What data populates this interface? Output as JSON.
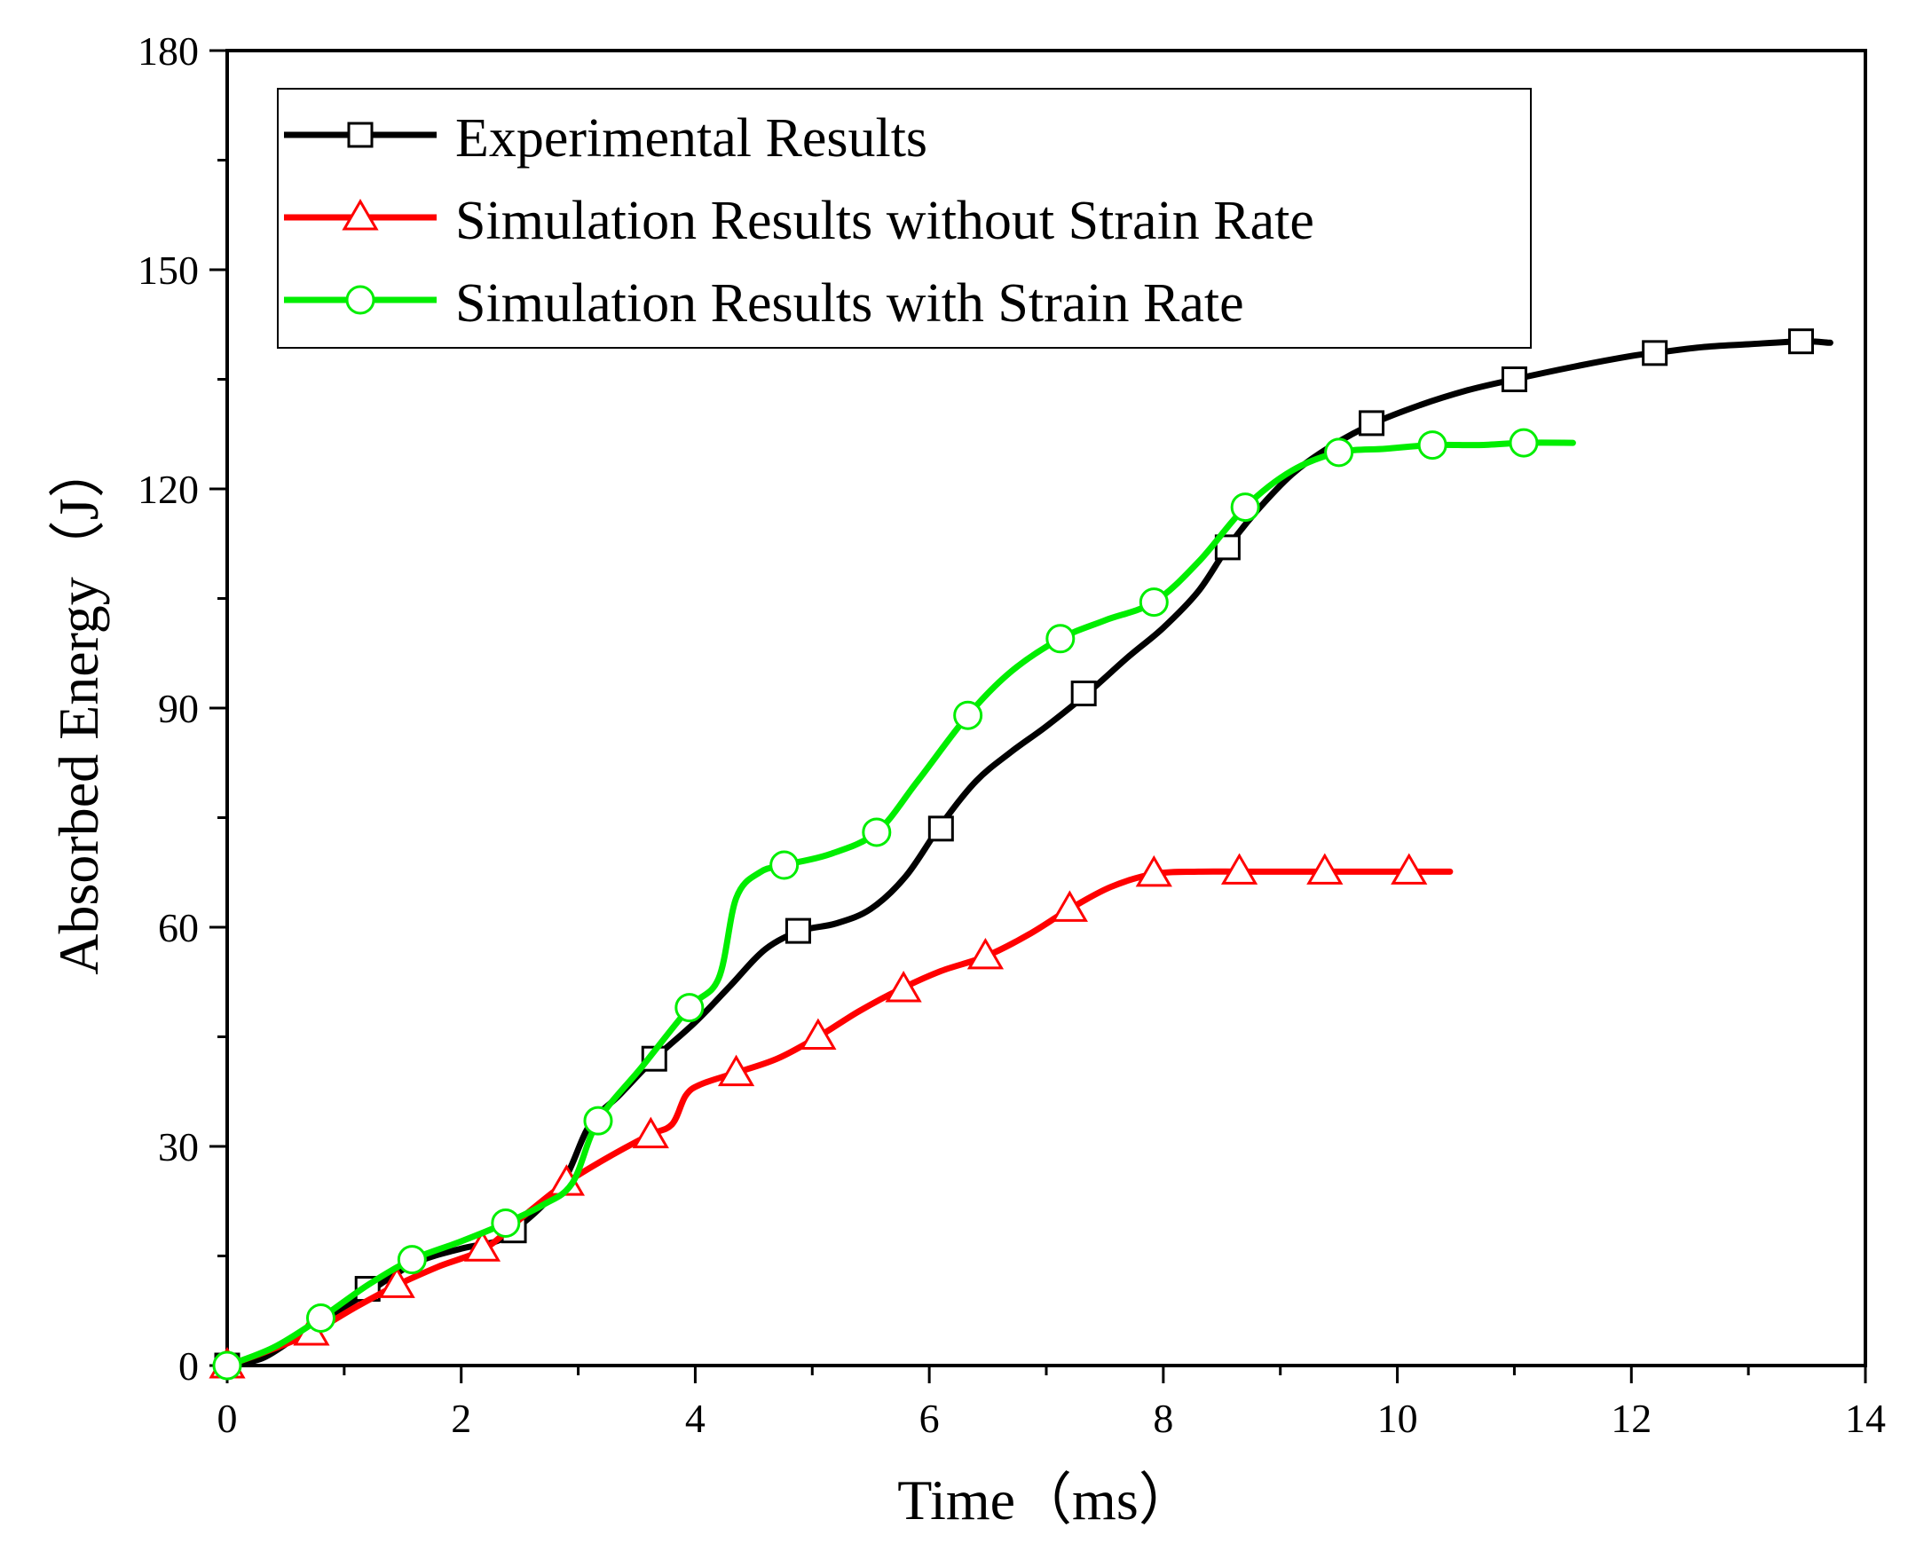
{
  "chart_data": {
    "type": "line",
    "title": "",
    "xlabel": "Time（ms）",
    "ylabel": "Absorbed Energy（J）",
    "xlim": [
      0,
      14
    ],
    "ylim": [
      0,
      180
    ],
    "xticks": [
      0,
      2,
      4,
      6,
      8,
      10,
      12,
      14
    ],
    "yticks": [
      0,
      30,
      60,
      90,
      120,
      150,
      180
    ],
    "xticks_minor": [
      1,
      3,
      5,
      7,
      9,
      11,
      13
    ],
    "yticks_minor": [
      15,
      45,
      75,
      105,
      135,
      165
    ],
    "grid": false,
    "legend_position": "top-left",
    "series": [
      {
        "name": "Experimental Results",
        "color": "#000000",
        "marker": "square",
        "x": [
          0,
          0.3,
          0.6,
          0.9,
          1.2,
          1.6,
          2.0,
          2.3,
          2.45,
          2.7,
          2.9,
          3.1,
          3.35,
          3.65,
          4.0,
          4.3,
          4.6,
          4.9,
          5.2,
          5.5,
          5.8,
          6.1,
          6.4,
          6.7,
          7.0,
          7.35,
          7.7,
          8.0,
          8.3,
          8.55,
          8.8,
          9.1,
          9.4,
          9.8,
          10.2,
          10.6,
          11.0,
          11.5,
          12.0,
          12.2,
          12.6,
          13.0,
          13.45,
          13.7
        ],
        "y": [
          0,
          1,
          4,
          7,
          10,
          14,
          16,
          17,
          18.5,
          22,
          26,
          33,
          37,
          42,
          47,
          52,
          57,
          59.5,
          60.5,
          62.5,
          67,
          74,
          80,
          84,
          87.5,
          92,
          97,
          101,
          106,
          112,
          117,
          122,
          125.5,
          129,
          131.5,
          133.5,
          135,
          136.7,
          138.2,
          138.6,
          139.4,
          139.8,
          140.2,
          140
        ],
        "marker_x": [
          0,
          1.2,
          2.45,
          3.65,
          4.88,
          6.1,
          7.32,
          8.55,
          9.78,
          11.0,
          12.2,
          13.45
        ],
        "marker_y": [
          0,
          10.5,
          18.5,
          42,
          59.5,
          73.5,
          92,
          112,
          129,
          135,
          138.6,
          140.2
        ]
      },
      {
        "name": "Simulation Results without Strain Rate",
        "color": "#ff0000",
        "marker": "triangle",
        "x": [
          0,
          0.35,
          0.72,
          1.1,
          1.45,
          1.8,
          2.2,
          2.5,
          2.85,
          3.2,
          3.6,
          3.8,
          3.92,
          4.05,
          4.33,
          4.7,
          5.05,
          5.4,
          5.75,
          6.1,
          6.48,
          6.85,
          7.2,
          7.55,
          7.92,
          8.3,
          8.65,
          9.0,
          9.38,
          9.75,
          10.1,
          10.45
        ],
        "y": [
          0,
          2,
          4.5,
          8,
          11,
          13.5,
          16,
          20,
          24.5,
          28,
          31.5,
          33,
          37,
          38.5,
          40,
          42,
          45,
          48.5,
          51.5,
          54,
          56,
          59,
          62.5,
          65.5,
          67.3,
          67.6,
          67.6,
          67.6,
          67.6,
          67.6,
          67.6,
          67.6
        ],
        "marker_x": [
          0,
          0.72,
          1.45,
          2.18,
          2.9,
          3.62,
          4.35,
          5.05,
          5.78,
          6.48,
          7.2,
          7.92,
          8.65,
          9.38,
          10.1
        ],
        "marker_y": [
          0,
          4.5,
          11,
          16,
          25,
          31.5,
          40,
          45,
          51.5,
          56,
          62.5,
          67.3,
          67.6,
          67.6,
          67.6
        ]
      },
      {
        "name": "Simulation Results with Strain Rate",
        "color": "#00ee00",
        "marker": "circle",
        "x": [
          0,
          0.4,
          0.8,
          1.2,
          1.58,
          2.0,
          2.38,
          2.7,
          2.95,
          3.17,
          3.55,
          3.95,
          4.2,
          4.35,
          4.55,
          4.76,
          5.15,
          5.55,
          5.9,
          6.33,
          6.7,
          7.12,
          7.5,
          7.92,
          8.3,
          8.7,
          9.1,
          9.5,
          9.9,
          10.3,
          10.7,
          11.08,
          11.5
        ],
        "y": [
          0,
          2.5,
          6.5,
          11,
          14.5,
          17,
          19.5,
          22,
          25,
          33.5,
          41,
          49,
          53,
          64,
          67.5,
          68.5,
          70,
          73,
          80,
          89,
          95,
          99.5,
          102,
          104.5,
          110,
          117.5,
          122.5,
          125,
          125.5,
          126,
          126,
          126.3,
          126.3
        ],
        "marker_x": [
          0,
          0.8,
          1.58,
          2.38,
          3.17,
          3.95,
          4.76,
          5.55,
          6.33,
          7.12,
          7.92,
          8.7,
          9.5,
          10.3,
          11.08
        ],
        "marker_y": [
          0,
          6.5,
          14.5,
          19.5,
          33.5,
          49,
          68.5,
          73,
          89,
          99.5,
          104.5,
          117.5,
          125,
          126,
          126.3
        ]
      }
    ]
  }
}
